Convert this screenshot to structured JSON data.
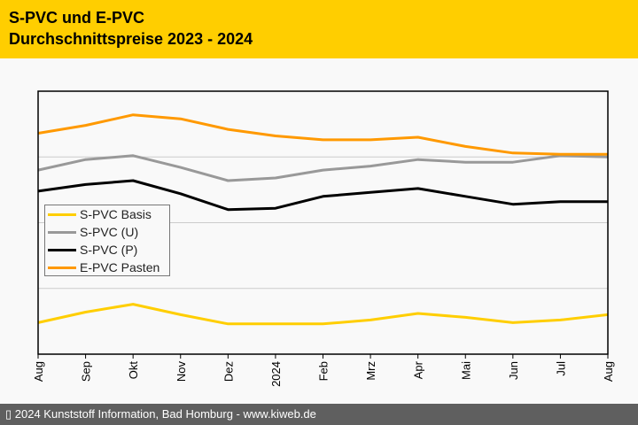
{
  "header": {
    "title_line1": "S-PVC und E-PVC",
    "title_line2": "Durchschnittspreise 2023 - 2024",
    "background": "#ffce00"
  },
  "footer": {
    "text": "▯ 2024 Kunststoff Information, Bad Homburg - www.kiweb.de"
  },
  "chart_data": {
    "type": "line",
    "title": "S-PVC und E-PVC Durchschnittspreise 2023 - 2024",
    "xlabel": "",
    "ylabel": "",
    "y_unit_note": "no y-axis labels shown; values on relative 0-100 scale",
    "ylim": [
      0,
      100
    ],
    "grid": true,
    "grid_values": [
      25,
      50,
      75
    ],
    "legend_position": "middle-left",
    "categories": [
      "Aug",
      "Sep",
      "Okt",
      "Nov",
      "Dez",
      "2024",
      "Feb",
      "Mrz",
      "Apr",
      "Mai",
      "Jun",
      "Jul",
      "Aug"
    ],
    "series": [
      {
        "name": "S-PVC Basis",
        "color": "#ffce00",
        "values": [
          12,
          16,
          19,
          15,
          11.5,
          11.5,
          11.5,
          13,
          15.5,
          14,
          12,
          13,
          15
        ]
      },
      {
        "name": "S-PVC (U)",
        "color": "#999999",
        "values": [
          70,
          74,
          75.5,
          71,
          66,
          67,
          70,
          71.5,
          74,
          73,
          73,
          75.5,
          75
        ]
      },
      {
        "name": "S-PVC (P)",
        "color": "#000000",
        "values": [
          62,
          64.5,
          66,
          61,
          55,
          55.5,
          60,
          61.5,
          63,
          60,
          57,
          58,
          58
        ]
      },
      {
        "name": "E-PVC Pasten",
        "color": "#ff9900",
        "values": [
          84,
          87,
          91,
          89.5,
          85.5,
          83,
          81.5,
          81.5,
          82.5,
          79,
          76.5,
          76,
          76
        ]
      }
    ]
  }
}
